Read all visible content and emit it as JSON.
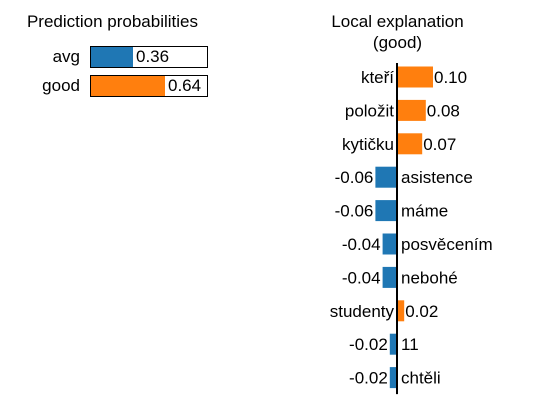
{
  "prediction": {
    "title": "Prediction probabilities",
    "classes": [
      {
        "label": "avg",
        "value": 0.36,
        "display": "0.36",
        "color": "#1f77b4"
      },
      {
        "label": "good",
        "value": 0.64,
        "display": "0.64",
        "color": "#ff7f0e"
      }
    ]
  },
  "explanation": {
    "title_line1": "Local explanation",
    "title_line2": "(good)"
  },
  "chart_data": {
    "type": "bar",
    "orientation": "horizontal",
    "title": "Local explanation (good)",
    "categories": [
      "kteří",
      "položit",
      "kytičku",
      "asistence",
      "máme",
      "posvěcením",
      "nebohé",
      "studenty",
      "11",
      "chtěli"
    ],
    "values": [
      0.1,
      0.08,
      0.07,
      -0.06,
      -0.06,
      -0.04,
      -0.04,
      0.02,
      -0.02,
      -0.02
    ],
    "value_labels": [
      "0.10",
      "0.08",
      "0.07",
      "-0.06",
      "-0.06",
      "-0.04",
      "-0.04",
      "0.02",
      "-0.02",
      "-0.02"
    ],
    "positive_color": "#ff7f0e",
    "negative_color": "#1f77b4",
    "xlim": [
      -0.06,
      0.1
    ]
  }
}
